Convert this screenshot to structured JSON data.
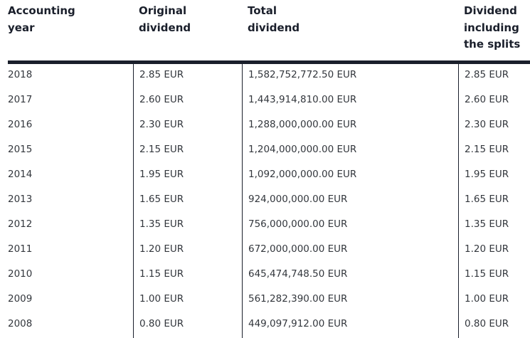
{
  "headers": [
    [
      "Accounting",
      "year"
    ],
    [
      "Original",
      "dividend"
    ],
    [
      "Total",
      "dividend"
    ],
    [
      "Dividend",
      "including",
      "the splits"
    ]
  ],
  "rows": [
    [
      "2018",
      "2.85 EUR",
      "1,582,752,772.50 EUR",
      "2.85 EUR"
    ],
    [
      "2017",
      "2.60 EUR",
      "1,443,914,810.00 EUR",
      "2.60 EUR"
    ],
    [
      "2016",
      "2.30 EUR",
      "1,288,000,000.00 EUR",
      "2.30 EUR"
    ],
    [
      "2015",
      "2.15 EUR",
      "1,204,000,000.00 EUR",
      "2.15 EUR"
    ],
    [
      "2014",
      "1.95 EUR",
      "1,092,000,000.00 EUR",
      "1.95 EUR"
    ],
    [
      "2013",
      "1.65 EUR",
      "924,000,000.00 EUR",
      "1.65 EUR"
    ],
    [
      "2012",
      "1.35 EUR",
      "756,000,000.00 EUR",
      "1.35 EUR"
    ],
    [
      "2011",
      "1.20 EUR",
      "672,000,000.00 EUR",
      "1.20 EUR"
    ],
    [
      "2010",
      "1.15 EUR",
      "645,474,748.50 EUR",
      "1.15 EUR"
    ],
    [
      "2009",
      "1.00 EUR",
      "561,282,390.00 EUR",
      "1.00 EUR"
    ],
    [
      "2008",
      "0.80 EUR",
      "449,097,912.00 EUR",
      "0.80 EUR"
    ]
  ]
}
